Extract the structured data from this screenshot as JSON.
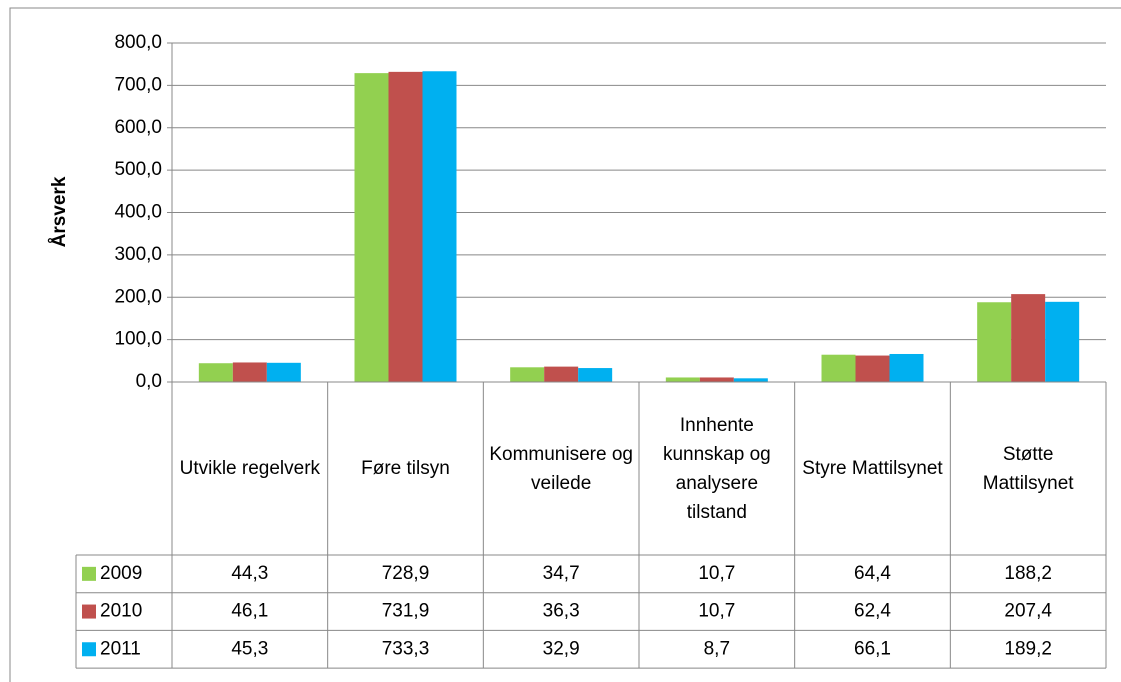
{
  "chart_data": {
    "type": "bar",
    "y_label": "Årsverk",
    "categories": [
      "Utvikle regelverk",
      "Føre tilsyn",
      "Kommunisere og veilede",
      "Innhente kunnskap og analysere tilstand",
      "Styre Mattilsynet",
      "Støtte Mattilsynet"
    ],
    "series": [
      {
        "name": "2009",
        "color": "#92d050",
        "values": [
          44.3,
          728.9,
          34.7,
          10.7,
          64.4,
          188.2
        ],
        "value_labels": [
          "44,3",
          "728,9",
          "34,7",
          "10,7",
          "64,4",
          "188,2"
        ]
      },
      {
        "name": "2010",
        "color": "#c0504d",
        "values": [
          46.1,
          731.9,
          36.3,
          10.7,
          62.4,
          207.4
        ],
        "value_labels": [
          "46,1",
          "731,9",
          "36,3",
          "10,7",
          "62,4",
          "207,4"
        ]
      },
      {
        "name": "2011",
        "color": "#00b0f0",
        "values": [
          45.3,
          733.3,
          32.9,
          8.7,
          66.1,
          189.2
        ],
        "value_labels": [
          "45,3",
          "733,3",
          "32,9",
          "8,7",
          "66,1",
          "189,2"
        ]
      }
    ],
    "ylim": [
      0,
      800
    ],
    "yticks": [
      {
        "value": 0,
        "label": "0,0"
      },
      {
        "value": 100,
        "label": "100,0"
      },
      {
        "value": 200,
        "label": "200,0"
      },
      {
        "value": 300,
        "label": "300,0"
      },
      {
        "value": 400,
        "label": "400,0"
      },
      {
        "value": 500,
        "label": "500,0"
      },
      {
        "value": 600,
        "label": "600,0"
      },
      {
        "value": 700,
        "label": "700,0"
      },
      {
        "value": 800,
        "label": "800,0"
      }
    ],
    "grid": true,
    "data_table": true
  }
}
